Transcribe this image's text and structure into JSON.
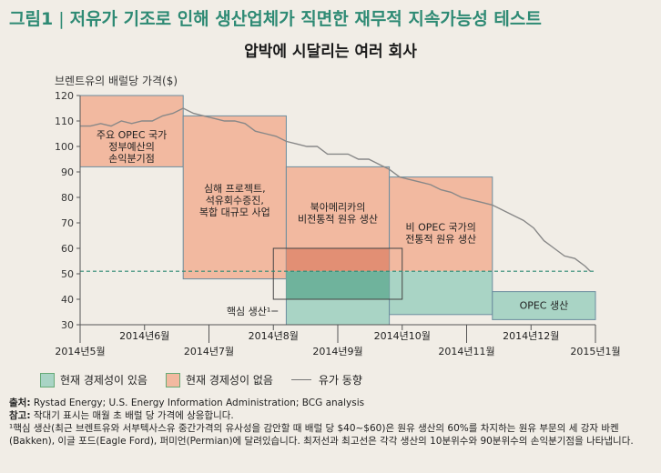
{
  "header": {
    "fig_num": "그림1",
    "sep": "|",
    "title": "저유가 기조로 인해 생산업체가 직면한 재무적 지속가능성 테스트",
    "subtitle": "압박에 시달리는 여러 회사"
  },
  "chart_data": {
    "type": "line",
    "ylabel": "브렌트유의 배럴당 가격($)",
    "ylim": [
      30,
      120
    ],
    "yticks": [
      30,
      40,
      50,
      60,
      70,
      80,
      90,
      100,
      110,
      120
    ],
    "xlim": [
      0,
      100
    ],
    "date_ticks_lower": [
      {
        "label": "2014년5월",
        "x": 0
      },
      {
        "label": "2014년7월",
        "x": 25
      },
      {
        "label": "2014년9월",
        "x": 50
      },
      {
        "label": "2014년11월",
        "x": 75
      },
      {
        "label": "2015년1월",
        "x": 100
      }
    ],
    "date_ticks_upper": [
      {
        "label": "2014년6월",
        "x": 12.5
      },
      {
        "label": "2014년8월",
        "x": 37.5
      },
      {
        "label": "2014년10월",
        "x": 62.5
      },
      {
        "label": "2014년12월",
        "x": 87.5
      }
    ],
    "series": [
      {
        "name": "유가 동향",
        "color": "#888888",
        "x": [
          0,
          2,
          4,
          6,
          8,
          10,
          12,
          14,
          16,
          18,
          20,
          22,
          24,
          26,
          28,
          30,
          32,
          34,
          36,
          38,
          40,
          42,
          44,
          46,
          48,
          50,
          52,
          54,
          56,
          58,
          60,
          62,
          64,
          66,
          68,
          70,
          72,
          74,
          76,
          78,
          80,
          82,
          84,
          86,
          88,
          90,
          92,
          94,
          96,
          98,
          99
        ],
        "y": [
          108,
          108,
          109,
          108,
          110,
          109,
          110,
          110,
          112,
          113,
          115,
          113,
          112,
          111,
          110,
          110,
          109,
          106,
          105,
          104,
          102,
          101,
          100,
          100,
          97,
          97,
          97,
          95,
          95,
          93,
          91,
          88,
          87,
          86,
          85,
          83,
          82,
          80,
          79,
          78,
          77,
          75,
          73,
          71,
          68,
          63,
          60,
          57,
          56,
          53,
          51
        ]
      }
    ],
    "cost_bars": [
      {
        "label": "주요 OPEC 국가 정부예산의 손익분기점",
        "lines": [
          "주요 OPEC 국가",
          "정부예산의",
          "손익분기점"
        ],
        "x0": 0,
        "x1": 20,
        "low": 92,
        "high": 120,
        "status": "uneconomic"
      },
      {
        "label": "심해 프로젝트, 석유회수증진, 복합 대규모 사업",
        "lines": [
          "심해 프로젝트,",
          "석유회수증진,",
          "복합 대규모 사업"
        ],
        "x0": 20,
        "x1": 40,
        "low": 48,
        "high": 112,
        "status": "uneconomic"
      },
      {
        "label": "북아메리카의 비전통적 원유 생산",
        "lines": [
          "북아메리카의",
          "비전통적 원유 생산"
        ],
        "x0": 40,
        "x1": 60,
        "low": 30,
        "high": 92,
        "status": "mixed"
      },
      {
        "label": "비 OPEC 국가의 전통적 원유 생산",
        "lines": [
          "비 OPEC 국가의",
          "전통적 원유 생산"
        ],
        "x0": 60,
        "x1": 80,
        "low": 34,
        "high": 88,
        "status": "mixed"
      },
      {
        "label": "OPEC 생산",
        "lines": [
          "OPEC 생산"
        ],
        "x0": 80,
        "x1": 100,
        "low": 32,
        "high": 43,
        "status": "economic"
      }
    ],
    "current_price_line": 51,
    "core_production": {
      "label": "핵심 생산¹",
      "x0": 37.5,
      "x1": 62.5,
      "low": 40,
      "high": 60
    },
    "colors": {
      "economic": "#a9d4c5",
      "uneconomic": "#f2b9a0",
      "border": "#6b8d9e",
      "price": "#888888",
      "dashed": "#2e8a74"
    }
  },
  "legend": {
    "economic": "현재 경제성이 있음",
    "uneconomic": "현재 경제성이 없음",
    "trend": "유가 동향"
  },
  "notes": {
    "source_label": "출처:",
    "source": " Rystad Energy; U.S. Energy Information Administration; BCG analysis",
    "ref_label": "참고:",
    "ref": " 작대기 표시는 매월 초 배럴 당 가격에 상응합니다.",
    "footnote": "¹핵심 생산(최근 브렌트유와 서부텍사스유 중간가격의 유사성을 감안할 때 배럴 당 $40~$60)은 원유 생산의 60%를 차지하는 원유 부문의 세 강자 바켄(Bakken), 이글 포드(Eagle Ford), 퍼미언(Permian)에 달려있습니다. 최저선과 최고선은 각각 생산의 10분위수와 90분위수의 손익분기점을 나타냅니다."
  }
}
